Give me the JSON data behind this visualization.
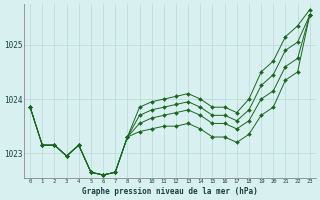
{
  "title": "Graphe pression niveau de la mer (hPa)",
  "background_color": "#d8f0f0",
  "grid_color": "#b8d8d8",
  "line_color": "#1a6620",
  "marker_color": "#1a6620",
  "x_ticks": [
    0,
    1,
    2,
    3,
    4,
    5,
    6,
    7,
    8,
    9,
    10,
    11,
    12,
    13,
    14,
    15,
    16,
    17,
    18,
    19,
    20,
    21,
    22,
    23
  ],
  "ylim": [
    1022.55,
    1025.75
  ],
  "yticks": [
    1023,
    1024,
    1025
  ],
  "figsize": [
    3.2,
    2.0
  ],
  "dpi": 100,
  "series": [
    [
      1023.85,
      1023.15,
      1023.15,
      1022.95,
      1023.15,
      1022.65,
      1022.6,
      1022.65,
      1023.3,
      1023.4,
      1023.45,
      1023.5,
      1023.5,
      1023.55,
      1023.45,
      1023.3,
      1023.3,
      1023.2,
      1023.35,
      1023.7,
      1023.85,
      1024.35,
      1024.5,
      1025.55
    ],
    [
      1023.85,
      1023.15,
      1023.15,
      1022.95,
      1023.15,
      1022.65,
      1022.6,
      1022.65,
      1023.3,
      1023.55,
      1023.65,
      1023.7,
      1023.75,
      1023.8,
      1023.7,
      1023.55,
      1023.55,
      1023.45,
      1023.6,
      1024.0,
      1024.15,
      1024.6,
      1024.75,
      1025.55
    ],
    [
      1023.85,
      1023.15,
      1023.15,
      1022.95,
      1023.15,
      1022.65,
      1022.6,
      1022.65,
      1023.3,
      1023.7,
      1023.8,
      1023.85,
      1023.9,
      1023.95,
      1023.85,
      1023.7,
      1023.7,
      1023.6,
      1023.8,
      1024.25,
      1024.45,
      1024.9,
      1025.05,
      1025.55
    ],
    [
      1023.85,
      1023.15,
      1023.15,
      1022.95,
      1023.15,
      1022.65,
      1022.6,
      1022.65,
      1023.3,
      1023.85,
      1023.95,
      1024.0,
      1024.05,
      1024.1,
      1024.0,
      1023.85,
      1023.85,
      1023.75,
      1024.0,
      1024.5,
      1024.7,
      1025.15,
      1025.35,
      1025.65
    ]
  ]
}
